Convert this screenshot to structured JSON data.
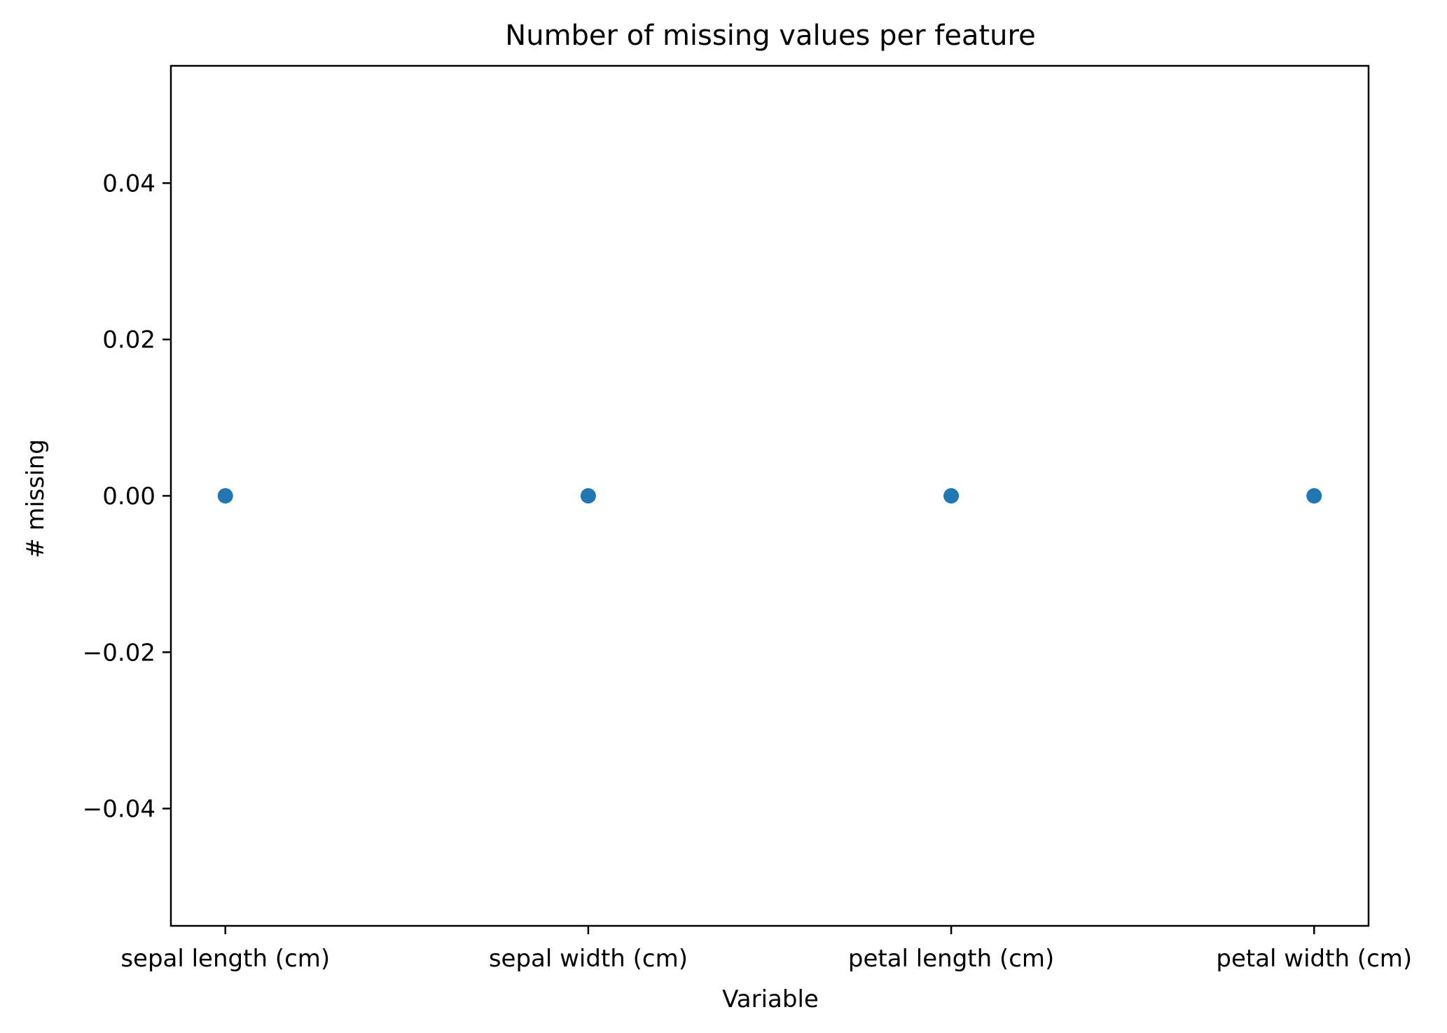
{
  "chart_data": {
    "type": "scatter",
    "title": "Number of missing values per feature",
    "xlabel": "Variable",
    "ylabel": "# missing",
    "categories": [
      "sepal length (cm)",
      "sepal width (cm)",
      "petal length (cm)",
      "petal width (cm)"
    ],
    "values": [
      0,
      0,
      0,
      0
    ],
    "ylim": [
      -0.055,
      0.055
    ],
    "yticks": [
      -0.04,
      -0.02,
      0.0,
      0.02,
      0.04
    ],
    "ytick_labels": [
      "−0.04",
      "−0.02",
      "0.00",
      "0.02",
      "0.04"
    ],
    "grid": false,
    "legend": "none",
    "colors": {
      "marker": "#1f77b4",
      "axes": "#000000",
      "background": "#ffffff"
    }
  }
}
